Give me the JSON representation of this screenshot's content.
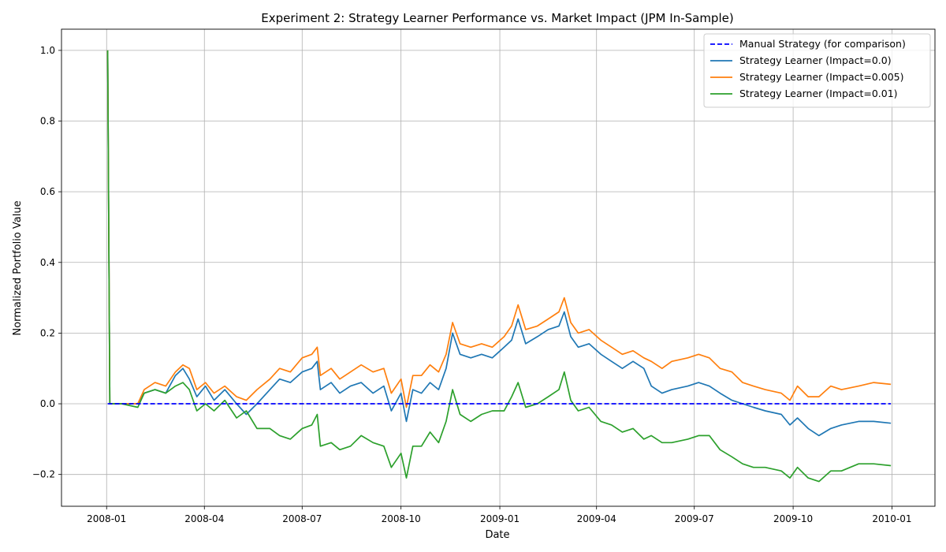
{
  "chart_data": {
    "type": "line",
    "title": "Experiment 2: Strategy Learner Performance vs. Market Impact (JPM In-Sample)",
    "xlabel": "Date",
    "ylabel": "Normalized Portfolio Value",
    "xlim": [
      "2007-11-20",
      "2010-02-10"
    ],
    "ylim": [
      -0.29,
      1.06
    ],
    "x_ticks": [
      "2008-01",
      "2008-04",
      "2008-07",
      "2008-10",
      "2009-01",
      "2009-04",
      "2009-07",
      "2009-10",
      "2010-01"
    ],
    "y_ticks": [
      -0.2,
      0.0,
      0.2,
      0.4,
      0.6,
      0.8,
      1.0
    ],
    "y_tick_labels": [
      "−0.2",
      "0.0",
      "0.2",
      "0.4",
      "0.6",
      "0.8",
      "1.0"
    ],
    "grid": true,
    "legend_position": "top-right",
    "series": [
      {
        "name": "Manual Strategy (for comparison)",
        "color": "#0000ff",
        "linestyle": "dashed",
        "points": [
          [
            "2008-01-02",
            0.0
          ],
          [
            "2009-12-31",
            0.0
          ]
        ]
      },
      {
        "name": "Strategy Learner (Impact=0.0)",
        "color": "#1f77b4",
        "linestyle": "solid",
        "points": [
          [
            "2008-01-02",
            1.0
          ],
          [
            "2008-01-04",
            0.0
          ],
          [
            "2008-01-15",
            0.0
          ],
          [
            "2008-01-30",
            0.0
          ],
          [
            "2008-02-05",
            0.03
          ],
          [
            "2008-02-15",
            0.04
          ],
          [
            "2008-02-25",
            0.03
          ],
          [
            "2008-03-05",
            0.08
          ],
          [
            "2008-03-12",
            0.1
          ],
          [
            "2008-03-18",
            0.07
          ],
          [
            "2008-03-25",
            0.02
          ],
          [
            "2008-04-02",
            0.05
          ],
          [
            "2008-04-10",
            0.01
          ],
          [
            "2008-04-20",
            0.04
          ],
          [
            "2008-05-01",
            0.0
          ],
          [
            "2008-05-10",
            -0.03
          ],
          [
            "2008-05-20",
            0.0
          ],
          [
            "2008-06-01",
            0.04
          ],
          [
            "2008-06-10",
            0.07
          ],
          [
            "2008-06-20",
            0.06
          ],
          [
            "2008-07-01",
            0.09
          ],
          [
            "2008-07-10",
            0.1
          ],
          [
            "2008-07-15",
            0.12
          ],
          [
            "2008-07-18",
            0.04
          ],
          [
            "2008-07-28",
            0.06
          ],
          [
            "2008-08-05",
            0.03
          ],
          [
            "2008-08-15",
            0.05
          ],
          [
            "2008-08-25",
            0.06
          ],
          [
            "2008-09-05",
            0.03
          ],
          [
            "2008-09-15",
            0.05
          ],
          [
            "2008-09-22",
            -0.02
          ],
          [
            "2008-10-01",
            0.03
          ],
          [
            "2008-10-06",
            -0.05
          ],
          [
            "2008-10-12",
            0.04
          ],
          [
            "2008-10-20",
            0.03
          ],
          [
            "2008-10-28",
            0.06
          ],
          [
            "2008-11-05",
            0.04
          ],
          [
            "2008-11-12",
            0.1
          ],
          [
            "2008-11-18",
            0.2
          ],
          [
            "2008-11-25",
            0.14
          ],
          [
            "2008-12-05",
            0.13
          ],
          [
            "2008-12-15",
            0.14
          ],
          [
            "2008-12-25",
            0.13
          ],
          [
            "2009-01-05",
            0.16
          ],
          [
            "2009-01-12",
            0.18
          ],
          [
            "2009-01-18",
            0.24
          ],
          [
            "2009-01-25",
            0.17
          ],
          [
            "2009-02-05",
            0.19
          ],
          [
            "2009-02-15",
            0.21
          ],
          [
            "2009-02-25",
            0.22
          ],
          [
            "2009-03-02",
            0.26
          ],
          [
            "2009-03-08",
            0.19
          ],
          [
            "2009-03-15",
            0.16
          ],
          [
            "2009-03-25",
            0.17
          ],
          [
            "2009-04-05",
            0.14
          ],
          [
            "2009-04-15",
            0.12
          ],
          [
            "2009-04-25",
            0.1
          ],
          [
            "2009-05-05",
            0.12
          ],
          [
            "2009-05-15",
            0.1
          ],
          [
            "2009-05-22",
            0.05
          ],
          [
            "2009-06-01",
            0.03
          ],
          [
            "2009-06-10",
            0.04
          ],
          [
            "2009-06-25",
            0.05
          ],
          [
            "2009-07-05",
            0.06
          ],
          [
            "2009-07-15",
            0.05
          ],
          [
            "2009-07-25",
            0.03
          ],
          [
            "2009-08-05",
            0.01
          ],
          [
            "2009-08-15",
            0.0
          ],
          [
            "2009-08-25",
            -0.01
          ],
          [
            "2009-09-05",
            -0.02
          ],
          [
            "2009-09-20",
            -0.03
          ],
          [
            "2009-09-28",
            -0.06
          ],
          [
            "2009-10-05",
            -0.04
          ],
          [
            "2009-10-15",
            -0.07
          ],
          [
            "2009-10-25",
            -0.09
          ],
          [
            "2009-11-05",
            -0.07
          ],
          [
            "2009-11-15",
            -0.06
          ],
          [
            "2009-12-01",
            -0.05
          ],
          [
            "2009-12-15",
            -0.05
          ],
          [
            "2009-12-31",
            -0.055
          ]
        ]
      },
      {
        "name": "Strategy Learner (Impact=0.005)",
        "color": "#ff7f0e",
        "linestyle": "solid",
        "points": [
          [
            "2008-01-02",
            1.0
          ],
          [
            "2008-01-04",
            0.0
          ],
          [
            "2008-01-15",
            0.0
          ],
          [
            "2008-01-30",
            0.0
          ],
          [
            "2008-02-05",
            0.04
          ],
          [
            "2008-02-15",
            0.06
          ],
          [
            "2008-02-25",
            0.05
          ],
          [
            "2008-03-05",
            0.09
          ],
          [
            "2008-03-12",
            0.11
          ],
          [
            "2008-03-18",
            0.1
          ],
          [
            "2008-03-25",
            0.04
          ],
          [
            "2008-04-02",
            0.06
          ],
          [
            "2008-04-10",
            0.03
          ],
          [
            "2008-04-20",
            0.05
          ],
          [
            "2008-05-01",
            0.02
          ],
          [
            "2008-05-10",
            0.01
          ],
          [
            "2008-05-20",
            0.04
          ],
          [
            "2008-06-01",
            0.07
          ],
          [
            "2008-06-10",
            0.1
          ],
          [
            "2008-06-20",
            0.09
          ],
          [
            "2008-07-01",
            0.13
          ],
          [
            "2008-07-10",
            0.14
          ],
          [
            "2008-07-15",
            0.16
          ],
          [
            "2008-07-18",
            0.08
          ],
          [
            "2008-07-28",
            0.1
          ],
          [
            "2008-08-05",
            0.07
          ],
          [
            "2008-08-15",
            0.09
          ],
          [
            "2008-08-25",
            0.11
          ],
          [
            "2008-09-05",
            0.09
          ],
          [
            "2008-09-15",
            0.1
          ],
          [
            "2008-09-22",
            0.03
          ],
          [
            "2008-10-01",
            0.07
          ],
          [
            "2008-10-06",
            -0.01
          ],
          [
            "2008-10-12",
            0.08
          ],
          [
            "2008-10-20",
            0.08
          ],
          [
            "2008-10-28",
            0.11
          ],
          [
            "2008-11-05",
            0.09
          ],
          [
            "2008-11-12",
            0.14
          ],
          [
            "2008-11-18",
            0.23
          ],
          [
            "2008-11-25",
            0.17
          ],
          [
            "2008-12-05",
            0.16
          ],
          [
            "2008-12-15",
            0.17
          ],
          [
            "2008-12-25",
            0.16
          ],
          [
            "2009-01-05",
            0.19
          ],
          [
            "2009-01-12",
            0.22
          ],
          [
            "2009-01-18",
            0.28
          ],
          [
            "2009-01-25",
            0.21
          ],
          [
            "2009-02-05",
            0.22
          ],
          [
            "2009-02-15",
            0.24
          ],
          [
            "2009-02-25",
            0.26
          ],
          [
            "2009-03-02",
            0.3
          ],
          [
            "2009-03-08",
            0.23
          ],
          [
            "2009-03-15",
            0.2
          ],
          [
            "2009-03-25",
            0.21
          ],
          [
            "2009-04-05",
            0.18
          ],
          [
            "2009-04-15",
            0.16
          ],
          [
            "2009-04-25",
            0.14
          ],
          [
            "2009-05-05",
            0.15
          ],
          [
            "2009-05-15",
            0.13
          ],
          [
            "2009-05-22",
            0.12
          ],
          [
            "2009-06-01",
            0.1
          ],
          [
            "2009-06-10",
            0.12
          ],
          [
            "2009-06-25",
            0.13
          ],
          [
            "2009-07-05",
            0.14
          ],
          [
            "2009-07-15",
            0.13
          ],
          [
            "2009-07-25",
            0.1
          ],
          [
            "2009-08-05",
            0.09
          ],
          [
            "2009-08-15",
            0.06
          ],
          [
            "2009-08-25",
            0.05
          ],
          [
            "2009-09-05",
            0.04
          ],
          [
            "2009-09-20",
            0.03
          ],
          [
            "2009-09-28",
            0.01
          ],
          [
            "2009-10-05",
            0.05
          ],
          [
            "2009-10-15",
            0.02
          ],
          [
            "2009-10-25",
            0.02
          ],
          [
            "2009-11-05",
            0.05
          ],
          [
            "2009-11-15",
            0.04
          ],
          [
            "2009-12-01",
            0.05
          ],
          [
            "2009-12-15",
            0.06
          ],
          [
            "2009-12-31",
            0.055
          ]
        ]
      },
      {
        "name": "Strategy Learner (Impact=0.01)",
        "color": "#2ca02c",
        "linestyle": "solid",
        "points": [
          [
            "2008-01-02",
            1.0
          ],
          [
            "2008-01-04",
            0.0
          ],
          [
            "2008-01-15",
            0.0
          ],
          [
            "2008-01-30",
            -0.01
          ],
          [
            "2008-02-05",
            0.03
          ],
          [
            "2008-02-15",
            0.04
          ],
          [
            "2008-02-25",
            0.03
          ],
          [
            "2008-03-05",
            0.05
          ],
          [
            "2008-03-12",
            0.06
          ],
          [
            "2008-03-18",
            0.04
          ],
          [
            "2008-03-25",
            -0.02
          ],
          [
            "2008-04-02",
            0.0
          ],
          [
            "2008-04-10",
            -0.02
          ],
          [
            "2008-04-20",
            0.01
          ],
          [
            "2008-05-01",
            -0.04
          ],
          [
            "2008-05-10",
            -0.02
          ],
          [
            "2008-05-20",
            -0.07
          ],
          [
            "2008-06-01",
            -0.07
          ],
          [
            "2008-06-10",
            -0.09
          ],
          [
            "2008-06-20",
            -0.1
          ],
          [
            "2008-07-01",
            -0.07
          ],
          [
            "2008-07-10",
            -0.06
          ],
          [
            "2008-07-15",
            -0.03
          ],
          [
            "2008-07-18",
            -0.12
          ],
          [
            "2008-07-28",
            -0.11
          ],
          [
            "2008-08-05",
            -0.13
          ],
          [
            "2008-08-15",
            -0.12
          ],
          [
            "2008-08-25",
            -0.09
          ],
          [
            "2008-09-05",
            -0.11
          ],
          [
            "2008-09-15",
            -0.12
          ],
          [
            "2008-09-22",
            -0.18
          ],
          [
            "2008-10-01",
            -0.14
          ],
          [
            "2008-10-06",
            -0.21
          ],
          [
            "2008-10-12",
            -0.12
          ],
          [
            "2008-10-20",
            -0.12
          ],
          [
            "2008-10-28",
            -0.08
          ],
          [
            "2008-11-05",
            -0.11
          ],
          [
            "2008-11-12",
            -0.05
          ],
          [
            "2008-11-18",
            0.04
          ],
          [
            "2008-11-25",
            -0.03
          ],
          [
            "2008-12-05",
            -0.05
          ],
          [
            "2008-12-15",
            -0.03
          ],
          [
            "2008-12-25",
            -0.02
          ],
          [
            "2009-01-05",
            -0.02
          ],
          [
            "2009-01-12",
            0.02
          ],
          [
            "2009-01-18",
            0.06
          ],
          [
            "2009-01-25",
            -0.01
          ],
          [
            "2009-02-05",
            0.0
          ],
          [
            "2009-02-15",
            0.02
          ],
          [
            "2009-02-25",
            0.04
          ],
          [
            "2009-03-02",
            0.09
          ],
          [
            "2009-03-08",
            0.01
          ],
          [
            "2009-03-15",
            -0.02
          ],
          [
            "2009-03-25",
            -0.01
          ],
          [
            "2009-04-05",
            -0.05
          ],
          [
            "2009-04-15",
            -0.06
          ],
          [
            "2009-04-25",
            -0.08
          ],
          [
            "2009-05-05",
            -0.07
          ],
          [
            "2009-05-15",
            -0.1
          ],
          [
            "2009-05-22",
            -0.09
          ],
          [
            "2009-06-01",
            -0.11
          ],
          [
            "2009-06-10",
            -0.11
          ],
          [
            "2009-06-25",
            -0.1
          ],
          [
            "2009-07-05",
            -0.09
          ],
          [
            "2009-07-15",
            -0.09
          ],
          [
            "2009-07-25",
            -0.13
          ],
          [
            "2009-08-05",
            -0.15
          ],
          [
            "2009-08-15",
            -0.17
          ],
          [
            "2009-08-25",
            -0.18
          ],
          [
            "2009-09-05",
            -0.18
          ],
          [
            "2009-09-20",
            -0.19
          ],
          [
            "2009-09-28",
            -0.21
          ],
          [
            "2009-10-05",
            -0.18
          ],
          [
            "2009-10-15",
            -0.21
          ],
          [
            "2009-10-25",
            -0.22
          ],
          [
            "2009-11-05",
            -0.19
          ],
          [
            "2009-11-15",
            -0.19
          ],
          [
            "2009-12-01",
            -0.17
          ],
          [
            "2009-12-15",
            -0.17
          ],
          [
            "2009-12-31",
            -0.175
          ]
        ]
      }
    ]
  }
}
